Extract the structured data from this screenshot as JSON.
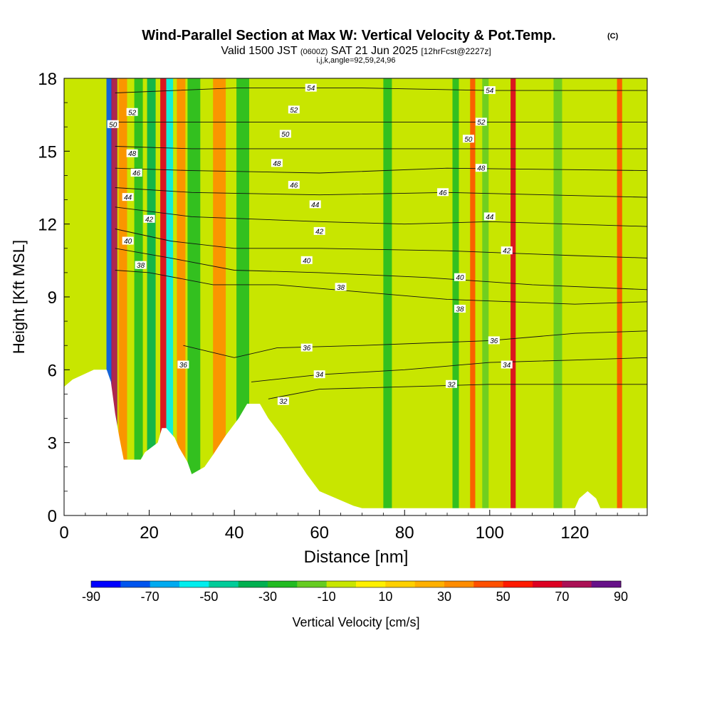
{
  "chart_data": {
    "type": "heatmap",
    "title": "Wind-Parallel Section at Max W: Vertical Velocity & Pot.Temp.",
    "title_mark": "(C)",
    "subtitle_prefix": "Valid 1500 JST",
    "subtitle_utc": "(0600Z)",
    "subtitle_date": "SAT 21 Jun 2025",
    "subtitle_fcst": "[12hrFcst@2227z]",
    "subtitle2": "i,j,k,angle=92,59,24,96",
    "xlabel": "Distance [nm]",
    "ylabel": "Height [Kft MSL]",
    "xlim": [
      0,
      137
    ],
    "ylim": [
      0,
      18
    ],
    "xticks": [
      0,
      20,
      40,
      60,
      80,
      100,
      120
    ],
    "yticks": [
      0,
      3,
      6,
      9,
      12,
      15,
      18
    ],
    "colorbar": {
      "label": "Vertical Velocity [cm/s]",
      "ticks": [
        -90,
        -70,
        -50,
        -30,
        -10,
        10,
        30,
        50,
        70,
        90
      ],
      "colors": [
        "#0000ff",
        "#0055ee",
        "#00aaf0",
        "#00eeee",
        "#00cc99",
        "#00b050",
        "#22bb22",
        "#66cc22",
        "#c8e600",
        "#fff000",
        "#ffd000",
        "#ffb000",
        "#ff8c00",
        "#ff5000",
        "#ff1a00",
        "#dd0022",
        "#aa1155",
        "#661188"
      ]
    },
    "terrain": [
      [
        0,
        5.3
      ],
      [
        2,
        5.6
      ],
      [
        7,
        6.0
      ],
      [
        10,
        6.0
      ],
      [
        11,
        5.5
      ],
      [
        12,
        4.2
      ],
      [
        13,
        3.2
      ],
      [
        14,
        2.3
      ],
      [
        18,
        2.3
      ],
      [
        19,
        2.6
      ],
      [
        22,
        3.0
      ],
      [
        23,
        3.6
      ],
      [
        24,
        3.6
      ],
      [
        26,
        3.2
      ],
      [
        27,
        2.8
      ],
      [
        29,
        2.2
      ],
      [
        30,
        1.7
      ],
      [
        33,
        2.0
      ],
      [
        35,
        2.5
      ],
      [
        38,
        3.3
      ],
      [
        41,
        4.0
      ],
      [
        43,
        4.6
      ],
      [
        46,
        4.6
      ],
      [
        48,
        4.0
      ],
      [
        51,
        3.3
      ],
      [
        54,
        2.5
      ],
      [
        57,
        1.7
      ],
      [
        60,
        1.0
      ],
      [
        64,
        0.7
      ],
      [
        68,
        0.4
      ],
      [
        70,
        0.3
      ],
      [
        120,
        0.3
      ],
      [
        121,
        0.7
      ],
      [
        123,
        1.0
      ],
      [
        125,
        0.7
      ],
      [
        126,
        0.3
      ],
      [
        137,
        0.3
      ]
    ],
    "columns": [
      {
        "x": 10.6,
        "w": 1.3,
        "v": -80
      },
      {
        "x": 11.8,
        "w": 1.4,
        "v": 70
      },
      {
        "x": 13.8,
        "w": 2.0,
        "v": 30
      },
      {
        "x": 17.5,
        "w": 2.0,
        "v": -30
      },
      {
        "x": 20.5,
        "w": 2.0,
        "v": -40
      },
      {
        "x": 23.3,
        "w": 1.4,
        "v": 65
      },
      {
        "x": 24.8,
        "w": 1.6,
        "v": -60
      },
      {
        "x": 27.5,
        "w": 2.0,
        "v": 30
      },
      {
        "x": 30.5,
        "w": 3.0,
        "v": -25
      },
      {
        "x": 36.5,
        "w": 3.0,
        "v": 35
      },
      {
        "x": 42.0,
        "w": 3.0,
        "v": -25
      },
      {
        "x": 76.0,
        "w": 2.0,
        "v": -25
      },
      {
        "x": 92.0,
        "w": 1.5,
        "v": -25
      },
      {
        "x": 96.0,
        "w": 1.2,
        "v": 45
      },
      {
        "x": 99.0,
        "w": 1.5,
        "v": -20
      },
      {
        "x": 105.5,
        "w": 1.2,
        "v": 60
      },
      {
        "x": 116.0,
        "w": 2.0,
        "v": -20
      },
      {
        "x": 130.5,
        "w": 1.2,
        "v": 45
      }
    ],
    "isentropes": [
      {
        "label": "32",
        "pts": [
          [
            48,
            4.8
          ],
          [
            60,
            5.2
          ],
          [
            80,
            5.3
          ],
          [
            100,
            5.4
          ],
          [
            120,
            5.4
          ],
          [
            137,
            5.4
          ]
        ],
        "lx": 52,
        "ly": 5.0
      },
      {
        "label": "34",
        "pts": [
          [
            44,
            5.5
          ],
          [
            60,
            5.8
          ],
          [
            80,
            6.0
          ],
          [
            100,
            6.3
          ],
          [
            120,
            6.4
          ],
          [
            137,
            6.5
          ]
        ],
        "lx": 60,
        "ly": 5.8
      },
      {
        "label": "36",
        "pts": [
          [
            28,
            7.0
          ],
          [
            40,
            6.5
          ],
          [
            50,
            6.9
          ],
          [
            70,
            7.0
          ],
          [
            100,
            7.2
          ],
          [
            120,
            7.5
          ],
          [
            137,
            7.6
          ]
        ],
        "lx": 58,
        "ly": 6.9
      },
      {
        "label": "38",
        "pts": [
          [
            12,
            10.1
          ],
          [
            20,
            10.0
          ],
          [
            35,
            9.5
          ],
          [
            50,
            9.5
          ],
          [
            70,
            9.2
          ],
          [
            90,
            8.9
          ],
          [
            120,
            8.7
          ],
          [
            137,
            8.8
          ]
        ],
        "lx": 64,
        "ly": 9.4
      },
      {
        "label": "40",
        "pts": [
          [
            12,
            11.0
          ],
          [
            25,
            10.6
          ],
          [
            40,
            10.1
          ],
          [
            60,
            10.0
          ],
          [
            85,
            9.8
          ],
          [
            110,
            9.5
          ],
          [
            137,
            9.3
          ]
        ],
        "lx": 58,
        "ly": 10.0
      },
      {
        "label": "42",
        "pts": [
          [
            12,
            11.8
          ],
          [
            25,
            11.3
          ],
          [
            40,
            11.0
          ],
          [
            60,
            11.0
          ],
          [
            90,
            10.9
          ],
          [
            120,
            10.7
          ],
          [
            137,
            10.6
          ]
        ],
        "lx": 60,
        "ly": 11.0
      },
      {
        "label": "44",
        "pts": [
          [
            12,
            12.7
          ],
          [
            30,
            12.3
          ],
          [
            60,
            12.1
          ],
          [
            80,
            12.0
          ],
          [
            100,
            12.1
          ],
          [
            137,
            11.9
          ]
        ],
        "lx": 60,
        "ly": 12.3
      },
      {
        "label": "46",
        "pts": [
          [
            12,
            13.5
          ],
          [
            30,
            13.3
          ],
          [
            60,
            13.2
          ],
          [
            90,
            13.3
          ],
          [
            137,
            13.1
          ]
        ],
        "lx": 55,
        "ly": 13.4
      },
      {
        "label": "48",
        "pts": [
          [
            12,
            14.3
          ],
          [
            30,
            14.2
          ],
          [
            60,
            14.1
          ],
          [
            90,
            14.3
          ],
          [
            137,
            14.2
          ]
        ],
        "lx": 50,
        "ly": 14.5
      },
      {
        "label": "50",
        "pts": [
          [
            12,
            15.2
          ],
          [
            30,
            15.1
          ],
          [
            60,
            15.1
          ],
          [
            100,
            15.1
          ],
          [
            137,
            15.1
          ]
        ],
        "lx": 52,
        "ly": 15.3
      },
      {
        "label": "52",
        "pts": [
          [
            12,
            16.2
          ],
          [
            40,
            16.2
          ],
          [
            70,
            16.2
          ],
          [
            100,
            16.2
          ],
          [
            137,
            16.2
          ]
        ],
        "lx": 54,
        "ly": 16.6
      },
      {
        "label": "54",
        "pts": [
          [
            12,
            17.4
          ],
          [
            40,
            17.6
          ],
          [
            70,
            17.6
          ],
          [
            100,
            17.5
          ],
          [
            137,
            17.5
          ]
        ],
        "lx": 58,
        "ly": 17.7
      }
    ],
    "theta_labels": [
      {
        "t": "54",
        "x": 58,
        "y": 17.6
      },
      {
        "t": "54",
        "x": 100,
        "y": 17.5
      },
      {
        "t": "52",
        "x": 16,
        "y": 16.6
      },
      {
        "t": "52",
        "x": 54,
        "y": 16.7
      },
      {
        "t": "52",
        "x": 98,
        "y": 16.2
      },
      {
        "t": "50",
        "x": 11.5,
        "y": 16.1
      },
      {
        "t": "50",
        "x": 52,
        "y": 15.7
      },
      {
        "t": "50",
        "x": 95,
        "y": 15.5
      },
      {
        "t": "48",
        "x": 16,
        "y": 14.9
      },
      {
        "t": "48",
        "x": 50,
        "y": 14.5
      },
      {
        "t": "48",
        "x": 98,
        "y": 14.3
      },
      {
        "t": "46",
        "x": 17,
        "y": 14.1
      },
      {
        "t": "46",
        "x": 54,
        "y": 13.6
      },
      {
        "t": "46",
        "x": 89,
        "y": 13.3
      },
      {
        "t": "44",
        "x": 15,
        "y": 13.1
      },
      {
        "t": "44",
        "x": 59,
        "y": 12.8
      },
      {
        "t": "44",
        "x": 100,
        "y": 12.3
      },
      {
        "t": "42",
        "x": 20,
        "y": 12.2
      },
      {
        "t": "42",
        "x": 60,
        "y": 11.7
      },
      {
        "t": "42",
        "x": 104,
        "y": 10.9
      },
      {
        "t": "40",
        "x": 15,
        "y": 11.3
      },
      {
        "t": "40",
        "x": 57,
        "y": 10.5
      },
      {
        "t": "40",
        "x": 93,
        "y": 9.8
      },
      {
        "t": "38",
        "x": 18,
        "y": 10.3
      },
      {
        "t": "38",
        "x": 65,
        "y": 9.4
      },
      {
        "t": "38",
        "x": 93,
        "y": 8.5
      },
      {
        "t": "36",
        "x": 28,
        "y": 6.2
      },
      {
        "t": "36",
        "x": 57,
        "y": 6.9
      },
      {
        "t": "36",
        "x": 101,
        "y": 7.2
      },
      {
        "t": "34",
        "x": 60,
        "y": 5.8
      },
      {
        "t": "34",
        "x": 104,
        "y": 6.2
      },
      {
        "t": "32",
        "x": 51.5,
        "y": 4.7
      },
      {
        "t": "32",
        "x": 91,
        "y": 5.4
      }
    ]
  }
}
